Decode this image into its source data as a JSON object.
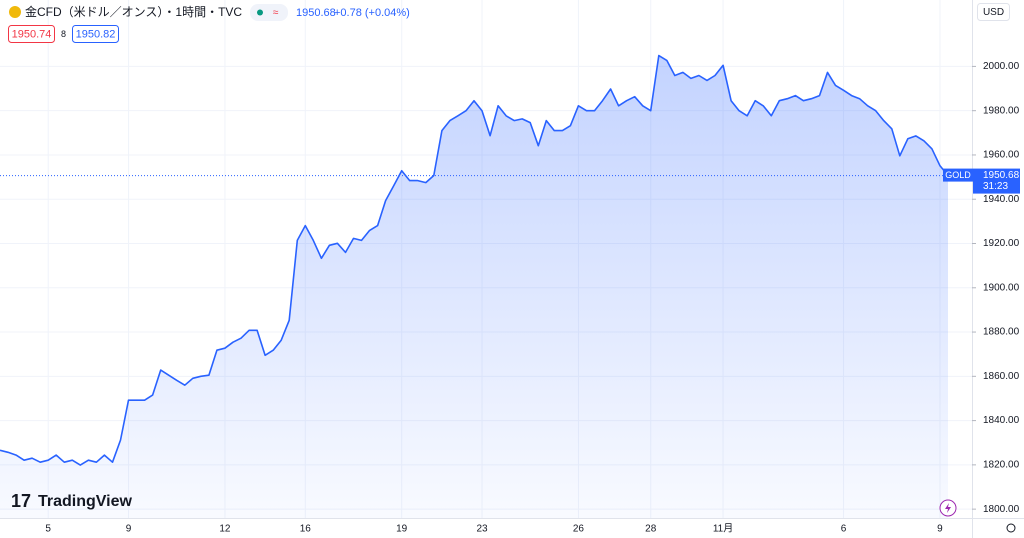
{
  "chart_data": {
    "type": "area",
    "title": "金CFD（米ドル／オンス）・1時間・TVC",
    "last_price": 1950.68,
    "change": "+0.78 (+0.04%)",
    "bid": 1950.74,
    "spread": 8,
    "ask": 1950.82,
    "currency": "USD",
    "symbol_tag": "GOLD",
    "countdown": "31:23",
    "brand": "TradingView",
    "categories": [
      null,
      null,
      null,
      null,
      null,
      null,
      "5",
      null,
      null,
      null,
      null,
      null,
      null,
      null,
      null,
      null,
      "9",
      null,
      null,
      null,
      null,
      null,
      null,
      null,
      null,
      null,
      null,
      null,
      "12",
      null,
      null,
      null,
      null,
      null,
      null,
      null,
      null,
      null,
      "16",
      null,
      null,
      null,
      null,
      null,
      null,
      null,
      null,
      null,
      null,
      null,
      "19",
      null,
      null,
      null,
      null,
      null,
      null,
      null,
      null,
      null,
      "23",
      null,
      null,
      null,
      null,
      null,
      null,
      null,
      null,
      null,
      null,
      null,
      "26",
      null,
      null,
      null,
      null,
      null,
      null,
      null,
      null,
      "28",
      null,
      null,
      null,
      null,
      null,
      null,
      null,
      null,
      "11月",
      null,
      null,
      null,
      null,
      null,
      null,
      null,
      null,
      null,
      null,
      null,
      null,
      null,
      null,
      "6",
      null,
      null,
      null,
      null,
      null,
      null,
      null,
      null,
      null,
      null,
      null,
      "9",
      null
    ],
    "series": [
      {
        "name": "GOLD",
        "color": "#2962ff",
        "values": [
          1826.6,
          1825.7,
          1824.4,
          1822.1,
          1823,
          1821.2,
          1822.1,
          1824.4,
          1821.2,
          1822.1,
          1819.9,
          1822.1,
          1821.2,
          1824.4,
          1821.2,
          1831.2,
          1849.2,
          1849.2,
          1849.2,
          1851.5,
          1862.8,
          1860.5,
          1858.2,
          1856,
          1859.1,
          1860,
          1860.5,
          1871.8,
          1872.7,
          1875.4,
          1877.2,
          1880.8,
          1880.8,
          1869.5,
          1871.8,
          1876.3,
          1885.3,
          1921.4,
          1928.1,
          1921.4,
          1913.3,
          1919.2,
          1920.1,
          1916,
          1922.3,
          1921.4,
          1925.9,
          1928.1,
          1939.4,
          1946.1,
          1952.9,
          1948.4,
          1948.4,
          1947.5,
          1950.7,
          1971,
          1975.5,
          1977.7,
          1980,
          1984.5,
          1980,
          1968.7,
          1982.2,
          1977.7,
          1975.5,
          1976.3,
          1974.6,
          1964.2,
          1975.5,
          1971,
          1971,
          1973.2,
          1982.2,
          1980,
          1980,
          1984.5,
          1989.8,
          1982.2,
          1984.5,
          1986.3,
          1982.2,
          1980,
          2004.9,
          2002.7,
          1995.9,
          1997.3,
          1994.6,
          1995.9,
          1993.7,
          1995.9,
          2000.5,
          1984.5,
          1980,
          1977.7,
          1984.5,
          1982.2,
          1977.7,
          1984.5,
          1985.4,
          1986.8,
          1984.5,
          1985.4,
          1986.8,
          1997.3,
          1991.4,
          1989.2,
          1986.8,
          1985.4,
          1982.2,
          1980,
          1975.5,
          1971.8,
          1959.6,
          1967.3,
          1968.6,
          1966.4,
          1962.8,
          1955.1,
          1950.7
        ]
      }
    ],
    "ylim": [
      1796,
      2030
    ],
    "yticks": [
      {
        "value": 1800,
        "label": "1800.00"
      },
      {
        "value": 1820,
        "label": "1820.00"
      },
      {
        "value": 1840,
        "label": "1840.00"
      },
      {
        "value": 1860,
        "label": "1860.00"
      },
      {
        "value": 1880,
        "label": "1880.00"
      },
      {
        "value": 1900,
        "label": "1900.00"
      },
      {
        "value": 1920,
        "label": "1920.00"
      },
      {
        "value": 1940,
        "label": "1940.00"
      },
      {
        "value": 1960,
        "label": "1960.00"
      },
      {
        "value": 1980,
        "label": "1980.00"
      },
      {
        "value": 2000,
        "label": "2000.00"
      }
    ],
    "grid": true
  }
}
